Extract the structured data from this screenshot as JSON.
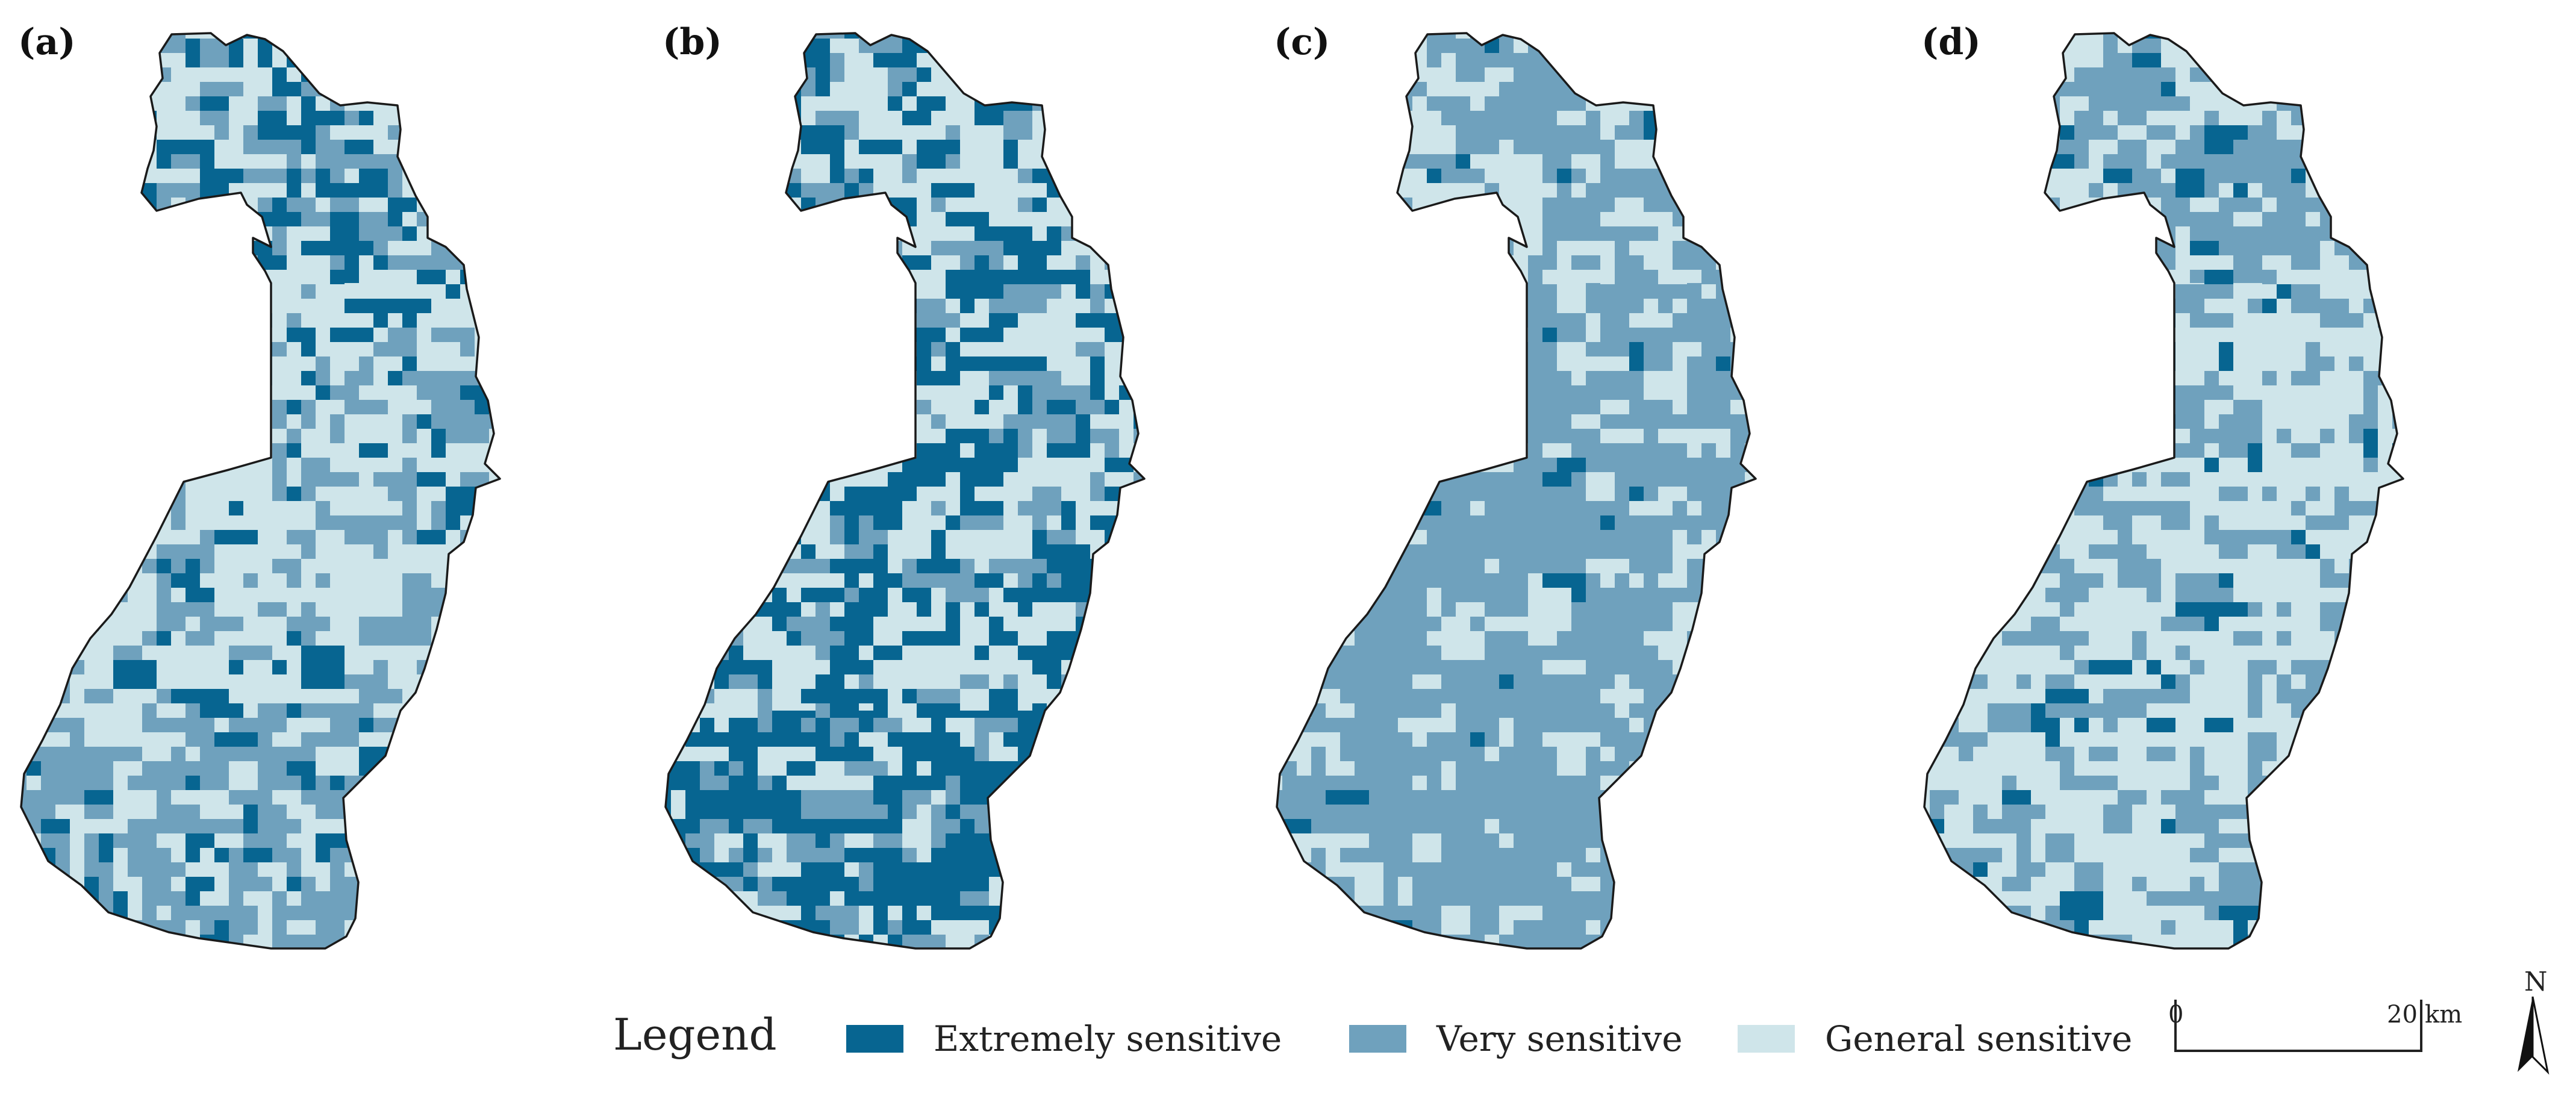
{
  "panels": [
    {
      "label": "(a)",
      "mix": {
        "extreme": 0.18,
        "very": 0.37,
        "general": 0.45
      },
      "dominant_north": "extreme",
      "dominant_middle": "general",
      "dominant_south": "very"
    },
    {
      "label": "(b)",
      "mix": {
        "extreme": 0.4,
        "very": 0.3,
        "general": 0.3
      },
      "dominant_north": "general",
      "dominant_middle": "general",
      "dominant_south": "extreme"
    },
    {
      "label": "(c)",
      "mix": {
        "extreme": 0.05,
        "very": 0.67,
        "general": 0.28
      },
      "dominant_north": "general",
      "dominant_middle": "very",
      "dominant_south": "very"
    },
    {
      "label": "(d)",
      "mix": {
        "extreme": 0.08,
        "very": 0.44,
        "general": 0.48
      },
      "dominant_north": "very",
      "dominant_middle": "general",
      "dominant_south": "general"
    }
  ],
  "legend": {
    "title": "Legend",
    "items": [
      {
        "key": "extreme",
        "label": "Extremely sensitive",
        "color": "#076591"
      },
      {
        "key": "very",
        "label": "Very sensitive",
        "color": "#6fa1bd"
      },
      {
        "key": "general",
        "label": "General sensitive",
        "color": "#cfe5ea"
      }
    ]
  },
  "scale_bar": {
    "start": "0",
    "end": "20",
    "unit": "km"
  },
  "north_arrow": {
    "label": "N",
    "icon": "north-arrow-icon"
  }
}
